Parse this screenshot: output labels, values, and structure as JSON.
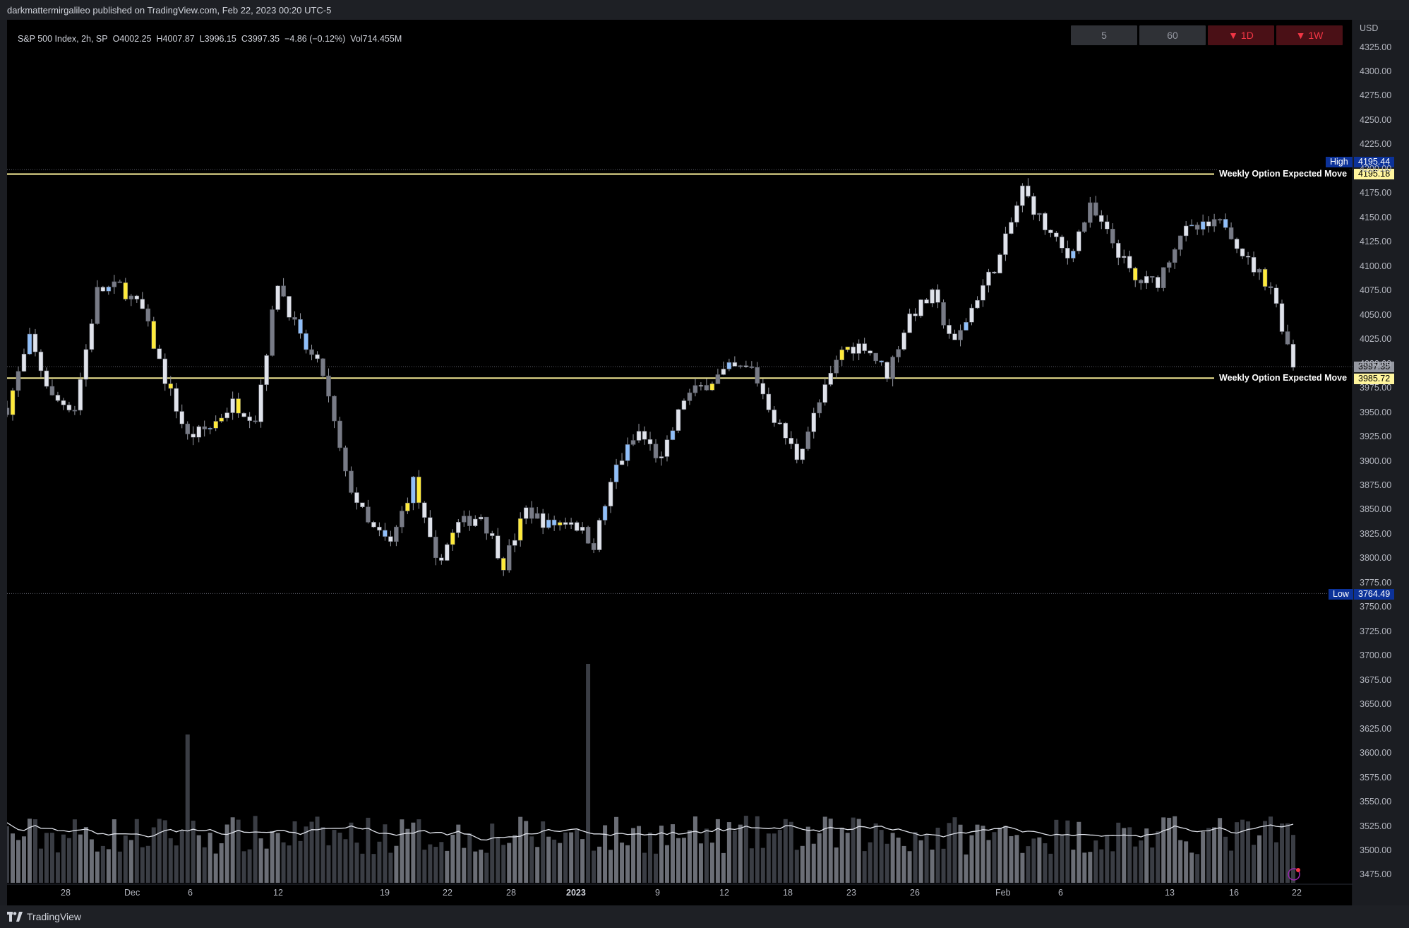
{
  "header": {
    "published": "darkmattermirgalileo published on TradingView.com, Feb 22, 2023 00:20 UTC-5"
  },
  "legend": {
    "symbol": "S&P 500 Index, 2h, SP",
    "open": "O4002.25",
    "high": "H4007.87",
    "low": "L3996.15",
    "close": "C3997.35",
    "change": "−4.86 (−0.12%)",
    "volume": "Vol714.455M"
  },
  "interval_buttons": [
    {
      "label": "5",
      "style": "gray"
    },
    {
      "label": "60",
      "style": "gray"
    },
    {
      "label": "▼ 1D",
      "style": "red"
    },
    {
      "label": "▼ 1W",
      "style": "red"
    }
  ],
  "price_axis": {
    "currency": "USD",
    "ticks": [
      "4325.00",
      "4300.00",
      "4275.00",
      "4250.00",
      "4225.00",
      "4200.00",
      "4175.00",
      "4150.00",
      "4125.00",
      "4100.00",
      "4075.00",
      "4050.00",
      "4025.00",
      "4000.00",
      "3975.00",
      "3950.00",
      "3925.00",
      "3900.00",
      "3875.00",
      "3850.00",
      "3825.00",
      "3800.00",
      "3775.00",
      "3750.00",
      "3725.00",
      "3700.00",
      "3675.00",
      "3650.00",
      "3625.00",
      "3600.00",
      "3575.00",
      "3550.00",
      "3525.00",
      "3500.00",
      "3475.00"
    ]
  },
  "time_axis": {
    "ticks": [
      "28",
      "Dec",
      "6",
      "12",
      "19",
      "22",
      "28",
      "2023",
      "9",
      "12",
      "18",
      "23",
      "26",
      "Feb",
      "6",
      "13",
      "16",
      "22"
    ]
  },
  "markers": {
    "high_label": "High",
    "high_value": "4195.44",
    "low_label": "Low",
    "low_value": "3764.49",
    "last_price": "3997.35",
    "upper_line_label": "Weekly Option Expected Move",
    "upper_line_value": "4195.18",
    "lower_line_label": "Weekly Option Expected Move",
    "lower_line_value": "3985.72"
  },
  "colors": {
    "background": "#000000",
    "candle_white": "#e0e3eb",
    "candle_gray": "#787b86",
    "candle_blue": "#90bff9",
    "candle_yellow": "#ffeb3b",
    "expected_move_line": "#fff59d",
    "high_low_badge": "#0c3299",
    "down_red": "#f23645"
  },
  "footer": {
    "brand": "TradingView"
  },
  "chart_data": {
    "type": "candlestick",
    "symbol": "S&P 500 Index",
    "interval": "2h",
    "close_path": [
      [
        "Nov 23",
        3955
      ],
      [
        "Nov 25",
        4025
      ],
      [
        "Nov 28",
        3965
      ],
      [
        "Nov 30",
        3955
      ],
      [
        "Nov 30",
        4075
      ],
      [
        "Dec 1",
        4080
      ],
      [
        "Dec 2",
        4055
      ],
      [
        "Dec 5",
        3985
      ],
      [
        "Dec 6",
        3925
      ],
      [
        "Dec 7",
        3935
      ],
      [
        "Dec 9",
        3960
      ],
      [
        "Dec 12",
        3945
      ],
      [
        "Dec 13",
        4085
      ],
      [
        "Dec 14",
        4025
      ],
      [
        "Dec 15",
        3990
      ],
      [
        "Dec 16",
        3885
      ],
      [
        "Dec 19",
        3835
      ],
      [
        "Dec 20",
        3815
      ],
      [
        "Dec 21",
        3880
      ],
      [
        "Dec 22",
        3795
      ],
      [
        "Dec 23",
        3835
      ],
      [
        "Dec 27",
        3845
      ],
      [
        "Dec 28",
        3795
      ],
      [
        "Dec 29",
        3850
      ],
      [
        "Dec 30",
        3835
      ],
      [
        "Jan 3",
        3840
      ],
      [
        "Jan 5",
        3815
      ],
      [
        "Jan 6",
        3895
      ],
      [
        "Jan 9",
        3930
      ],
      [
        "Jan 10",
        3900
      ],
      [
        "Jan 11",
        3965
      ],
      [
        "Jan 12",
        3980
      ],
      [
        "Jan 13",
        3995
      ],
      [
        "Jan 17",
        3995
      ],
      [
        "Jan 18",
        3945
      ],
      [
        "Jan 19",
        3905
      ],
      [
        "Jan 20",
        3960
      ],
      [
        "Jan 23",
        4015
      ],
      [
        "Jan 24",
        4020
      ],
      [
        "Jan 25",
        3990
      ],
      [
        "Jan 26",
        4050
      ],
      [
        "Jan 27",
        4070
      ],
      [
        "Jan 30",
        4020
      ],
      [
        "Jan 31",
        4070
      ],
      [
        "Feb 1",
        4110
      ],
      [
        "Feb 2",
        4180
      ],
      [
        "Feb 3",
        4140
      ],
      [
        "Feb 6",
        4110
      ],
      [
        "Feb 7",
        4160
      ],
      [
        "Feb 8",
        4125
      ],
      [
        "Feb 9",
        4085
      ],
      [
        "Feb 10",
        4085
      ],
      [
        "Feb 13",
        4135
      ],
      [
        "Feb 14",
        4140
      ],
      [
        "Feb 15",
        4145
      ],
      [
        "Feb 16",
        4105
      ],
      [
        "Feb 17",
        4080
      ],
      [
        "Feb 21",
        4000
      ]
    ],
    "horizontal_lines": [
      {
        "label": "Weekly Option Expected Move",
        "price": 4195.18
      },
      {
        "label": "Weekly Option Expected Move",
        "price": 3985.72
      }
    ],
    "high": 4195.44,
    "low": 3764.49,
    "last": 3997.35,
    "ylim": [
      3465,
      4335
    ]
  }
}
